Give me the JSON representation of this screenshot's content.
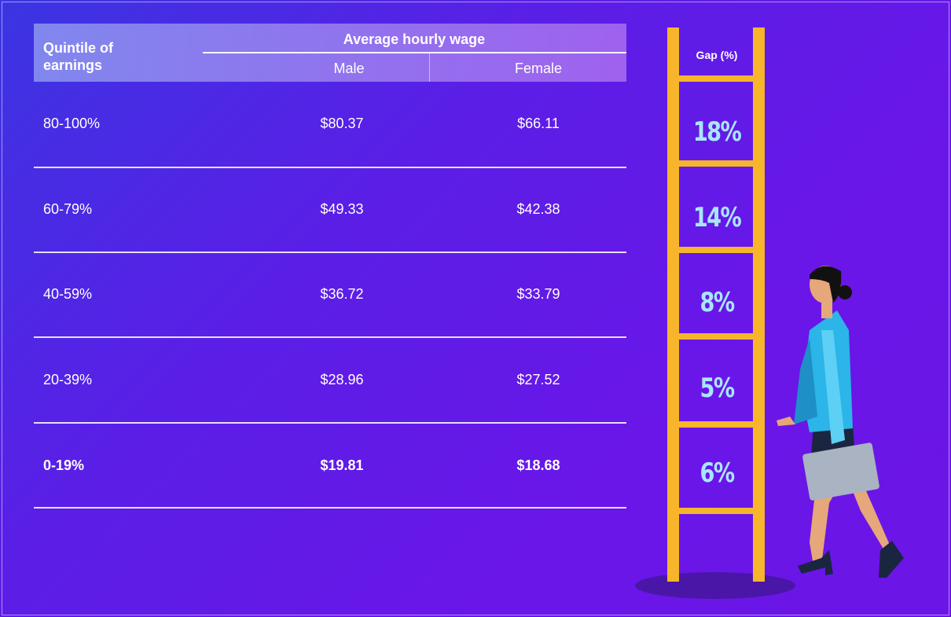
{
  "table": {
    "header": {
      "quintile": "Quintile of earnings",
      "group": "Average hourly wage",
      "male": "Male",
      "female": "Female"
    },
    "rows": [
      [
        "80-100%",
        "$80.37",
        "$66.11"
      ],
      [
        "60-79%",
        "$49.33",
        "$42.38"
      ],
      [
        "40-59%",
        "$36.72",
        "$33.79"
      ],
      [
        "20-39%",
        "$28.96",
        "$27.52"
      ],
      [
        "0-19%",
        "$19.81",
        "$18.68"
      ]
    ]
  },
  "gap": {
    "title": "Gap (%)",
    "values": [
      "18%",
      "14%",
      "8%",
      "5%",
      "6%"
    ]
  }
}
